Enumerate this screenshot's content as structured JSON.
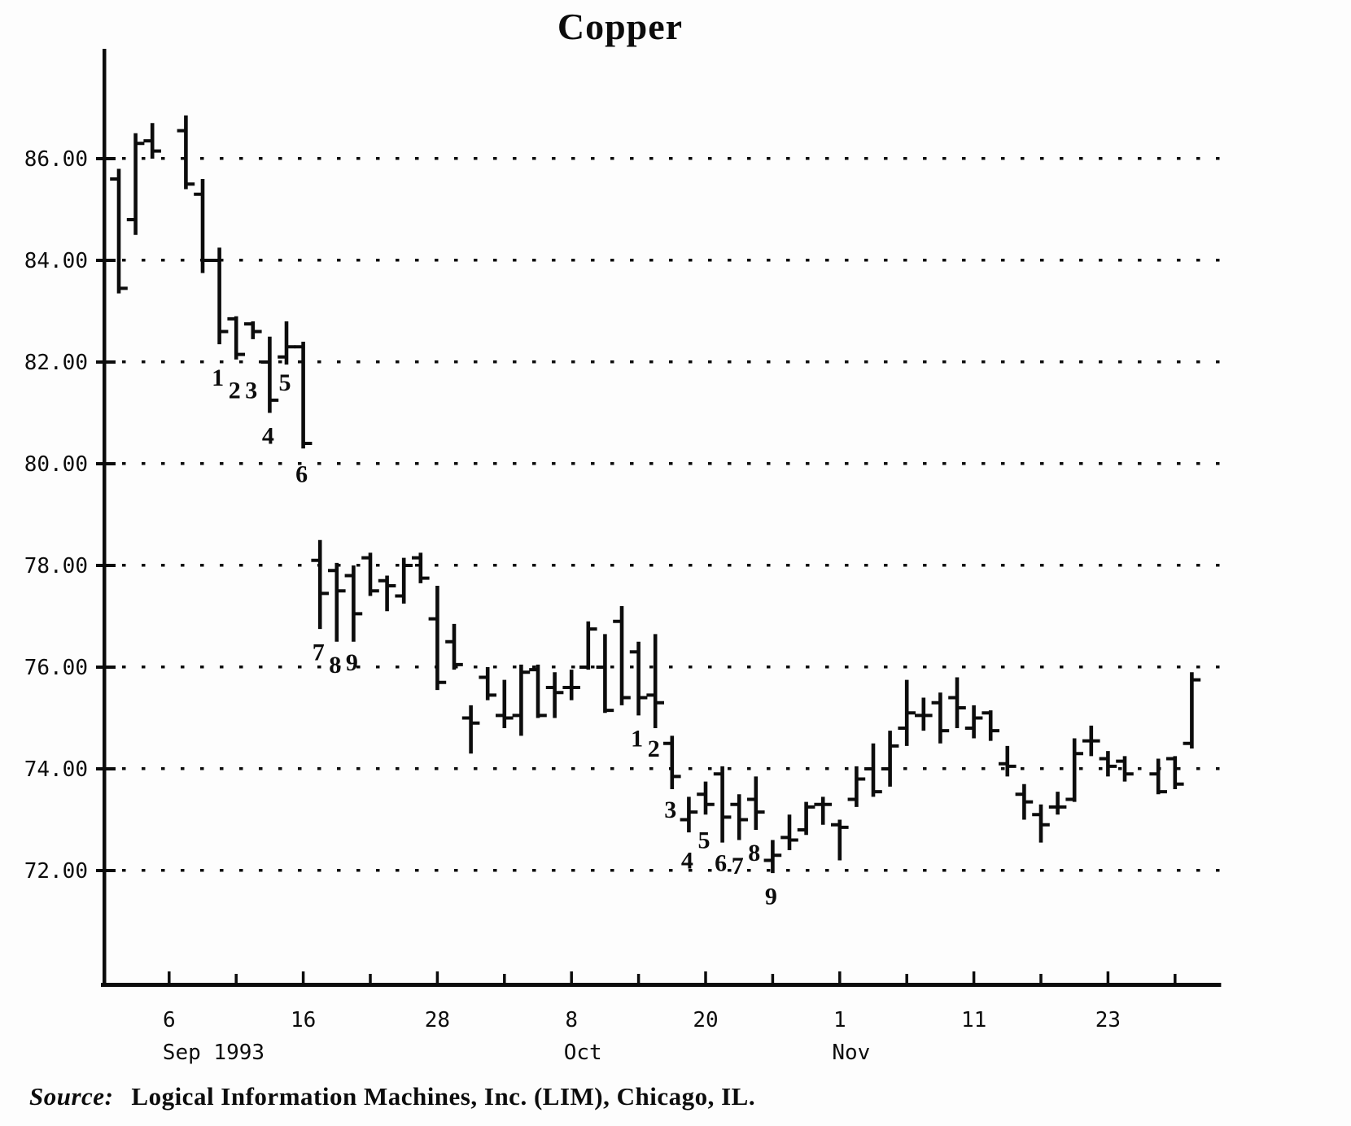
{
  "page": {
    "background": "#fdfdfd",
    "ink": "#0c0c0c"
  },
  "header": {
    "title": "Copper"
  },
  "footer": {
    "source_label": "Source:",
    "source_text": "Logical Information Machines, Inc. (LIM), Chicago, IL."
  },
  "chart_data": {
    "type": "bar",
    "variant": "daily-OHLC-price-bars",
    "title": "Copper",
    "xlabel": "",
    "ylabel": "",
    "grid": "dotted-horizontal",
    "legend": "none",
    "ylim": [
      70.6,
      88.2
    ],
    "y_axis": {
      "ticks": [
        {
          "value": 86,
          "label": "86.00"
        },
        {
          "value": 84,
          "label": "84.00"
        },
        {
          "value": 82,
          "label": "82.00"
        },
        {
          "value": 80,
          "label": "80.00"
        },
        {
          "value": 78,
          "label": "78.00"
        },
        {
          "value": 76,
          "label": "76.00"
        },
        {
          "value": 74,
          "label": "74.00"
        },
        {
          "value": 72,
          "label": "72.00"
        }
      ]
    },
    "x_axis": {
      "slots_total": 65,
      "major_ticks": [
        {
          "label": "6",
          "slot": 3
        },
        {
          "label": "16",
          "slot": 11
        },
        {
          "label": "28",
          "slot": 19
        },
        {
          "label": "8",
          "slot": 27
        },
        {
          "label": "20",
          "slot": 35
        },
        {
          "label": "1",
          "slot": 43
        },
        {
          "label": "11",
          "slot": 51
        },
        {
          "label": "23",
          "slot": 59
        }
      ],
      "minor_tick_slots": [
        7,
        15,
        23,
        31,
        39,
        47,
        55,
        63
      ],
      "month_labels": [
        {
          "label": "Sep 1993",
          "slot": 3,
          "align": "start"
        },
        {
          "label": "Oct",
          "slot": 27,
          "align": "middle"
        },
        {
          "label": "Nov",
          "slot": 43,
          "align": "middle"
        }
      ]
    },
    "annotations_note": "digits 1-9 printed below consecutive bars mark the two 9-day setup counts",
    "bars": [
      {
        "d": "Sep 1",
        "s": 0,
        "h": 85.8,
        "l": 83.35,
        "o": 85.6,
        "c": 83.45
      },
      {
        "d": "Sep 2",
        "s": 1,
        "h": 86.5,
        "l": 84.5,
        "o": 84.8,
        "c": 86.3
      },
      {
        "d": "Sep 3",
        "s": 2,
        "h": 86.7,
        "l": 86.0,
        "o": 86.35,
        "c": 86.15
      },
      {
        "d": "Sep 7",
        "s": 4,
        "h": 86.85,
        "l": 85.4,
        "o": 86.55,
        "c": 85.5
      },
      {
        "d": "Sep 8",
        "s": 5,
        "h": 85.6,
        "l": 83.75,
        "o": 85.3,
        "c": 84.0
      },
      {
        "d": "Sep 9",
        "s": 6,
        "h": 84.25,
        "l": 82.35,
        "o": 84.0,
        "c": 82.6,
        "n": "1",
        "ny": 81.7
      },
      {
        "d": "Sep 10",
        "s": 7,
        "h": 82.9,
        "l": 82.05,
        "o": 82.85,
        "c": 82.15,
        "n": "2",
        "ny": 81.45
      },
      {
        "d": "Sep 13",
        "s": 8,
        "h": 82.8,
        "l": 82.45,
        "o": 82.75,
        "c": 82.6,
        "n": "3",
        "ny": 81.45
      },
      {
        "d": "Sep 14",
        "s": 9,
        "h": 82.5,
        "l": 81.0,
        "o": 82.0,
        "c": 81.25,
        "n": "4",
        "ny": 80.55
      },
      {
        "d": "Sep 15",
        "s": 10,
        "h": 82.8,
        "l": 81.95,
        "o": 82.1,
        "c": 82.3,
        "n": "5",
        "ny": 81.6
      },
      {
        "d": "Sep 16",
        "s": 11,
        "h": 82.4,
        "l": 80.3,
        "o": 82.3,
        "c": 80.4,
        "n": "6",
        "ny": 79.8
      },
      {
        "d": "Sep 17",
        "s": 12,
        "h": 78.5,
        "l": 76.75,
        "o": 78.1,
        "c": 77.45,
        "n": "7",
        "ny": 76.3
      },
      {
        "d": "Sep 20",
        "s": 13,
        "h": 78.05,
        "l": 76.5,
        "o": 77.9,
        "c": 77.5,
        "n": "8",
        "ny": 76.05
      },
      {
        "d": "Sep 21",
        "s": 14,
        "h": 78.0,
        "l": 76.5,
        "o": 77.8,
        "c": 77.05,
        "n": "9",
        "ny": 76.1
      },
      {
        "d": "Sep 22",
        "s": 15,
        "h": 78.25,
        "l": 77.4,
        "o": 78.15,
        "c": 77.5
      },
      {
        "d": "Sep 23",
        "s": 16,
        "h": 77.8,
        "l": 77.1,
        "o": 77.7,
        "c": 77.6
      },
      {
        "d": "Sep 24",
        "s": 17,
        "h": 78.15,
        "l": 77.25,
        "o": 77.4,
        "c": 78.0
      },
      {
        "d": "Sep 27",
        "s": 18,
        "h": 78.25,
        "l": 77.65,
        "o": 78.15,
        "c": 77.75
      },
      {
        "d": "Sep 28",
        "s": 19,
        "h": 77.6,
        "l": 75.55,
        "o": 76.95,
        "c": 75.7
      },
      {
        "d": "Sep 29",
        "s": 20,
        "h": 76.85,
        "l": 75.95,
        "o": 76.5,
        "c": 76.05
      },
      {
        "d": "Sep 30",
        "s": 21,
        "h": 75.25,
        "l": 74.3,
        "o": 75.0,
        "c": 74.9
      },
      {
        "d": "Oct 1",
        "s": 22,
        "h": 76.0,
        "l": 75.35,
        "o": 75.8,
        "c": 75.45
      },
      {
        "d": "Oct 4",
        "s": 23,
        "h": 75.75,
        "l": 74.8,
        "o": 75.05,
        "c": 75.0
      },
      {
        "d": "Oct 5",
        "s": 24,
        "h": 76.05,
        "l": 74.65,
        "o": 75.05,
        "c": 75.9
      },
      {
        "d": "Oct 6",
        "s": 25,
        "h": 76.05,
        "l": 75.0,
        "o": 75.95,
        "c": 75.05
      },
      {
        "d": "Oct 7",
        "s": 26,
        "h": 75.9,
        "l": 75.0,
        "o": 75.6,
        "c": 75.5
      },
      {
        "d": "Oct 8",
        "s": 27,
        "h": 75.95,
        "l": 75.35,
        "o": 75.6,
        "c": 75.6
      },
      {
        "d": "Oct 11",
        "s": 28,
        "h": 76.9,
        "l": 75.95,
        "o": 76.0,
        "c": 76.75
      },
      {
        "d": "Oct 12",
        "s": 29,
        "h": 76.65,
        "l": 75.1,
        "o": 76.0,
        "c": 75.15
      },
      {
        "d": "Oct 13",
        "s": 30,
        "h": 77.2,
        "l": 75.25,
        "o": 76.9,
        "c": 75.4
      },
      {
        "d": "Oct 14",
        "s": 31,
        "h": 76.5,
        "l": 75.05,
        "o": 76.3,
        "c": 75.4,
        "n": "1",
        "ny": 74.6
      },
      {
        "d": "Oct 15",
        "s": 32,
        "h": 76.65,
        "l": 74.8,
        "o": 75.45,
        "c": 75.3,
        "n": "2",
        "ny": 74.4
      },
      {
        "d": "Oct 18",
        "s": 33,
        "h": 74.65,
        "l": 73.6,
        "o": 74.5,
        "c": 73.85,
        "n": "3",
        "ny": 73.2
      },
      {
        "d": "Oct 19",
        "s": 34,
        "h": 73.45,
        "l": 72.75,
        "o": 73.0,
        "c": 73.15,
        "n": "4",
        "ny": 72.2
      },
      {
        "d": "Oct 20",
        "s": 35,
        "h": 73.75,
        "l": 73.1,
        "o": 73.5,
        "c": 73.3,
        "n": "5",
        "ny": 72.6
      },
      {
        "d": "Oct 21",
        "s": 36,
        "h": 74.05,
        "l": 72.55,
        "o": 73.9,
        "c": 73.05,
        "n": "6",
        "ny": 72.15
      },
      {
        "d": "Oct 22",
        "s": 37,
        "h": 73.5,
        "l": 72.6,
        "o": 73.3,
        "c": 73.0,
        "n": "7",
        "ny": 72.1
      },
      {
        "d": "Oct 25",
        "s": 38,
        "h": 73.85,
        "l": 72.8,
        "o": 73.4,
        "c": 73.15,
        "n": "8",
        "ny": 72.35
      },
      {
        "d": "Oct 26",
        "s": 39,
        "h": 72.6,
        "l": 71.95,
        "o": 72.2,
        "c": 72.3,
        "n": "9",
        "ny": 71.5
      },
      {
        "d": "Oct 27",
        "s": 40,
        "h": 73.1,
        "l": 72.4,
        "o": 72.65,
        "c": 72.6
      },
      {
        "d": "Oct 28",
        "s": 41,
        "h": 73.35,
        "l": 72.7,
        "o": 72.8,
        "c": 73.25
      },
      {
        "d": "Oct 29",
        "s": 42,
        "h": 73.45,
        "l": 72.9,
        "o": 73.3,
        "c": 73.3
      },
      {
        "d": "Nov 1",
        "s": 43,
        "h": 73.0,
        "l": 72.2,
        "o": 72.9,
        "c": 72.85
      },
      {
        "d": "Nov 2",
        "s": 44,
        "h": 74.05,
        "l": 73.25,
        "o": 73.4,
        "c": 73.8
      },
      {
        "d": "Nov 3",
        "s": 45,
        "h": 74.5,
        "l": 73.45,
        "o": 74.0,
        "c": 73.55
      },
      {
        "d": "Nov 4",
        "s": 46,
        "h": 74.75,
        "l": 73.65,
        "o": 74.0,
        "c": 74.45
      },
      {
        "d": "Nov 5",
        "s": 47,
        "h": 75.75,
        "l": 74.45,
        "o": 74.8,
        "c": 75.1
      },
      {
        "d": "Nov 8",
        "s": 48,
        "h": 75.4,
        "l": 74.75,
        "o": 75.05,
        "c": 75.05
      },
      {
        "d": "Nov 9",
        "s": 49,
        "h": 75.5,
        "l": 74.5,
        "o": 75.3,
        "c": 74.75
      },
      {
        "d": "Nov 10",
        "s": 50,
        "h": 75.8,
        "l": 74.8,
        "o": 75.4,
        "c": 75.2
      },
      {
        "d": "Nov 11",
        "s": 51,
        "h": 75.25,
        "l": 74.6,
        "o": 74.8,
        "c": 75.0
      },
      {
        "d": "Nov 12",
        "s": 52,
        "h": 75.15,
        "l": 74.55,
        "o": 75.1,
        "c": 74.75
      },
      {
        "d": "Nov 15",
        "s": 53,
        "h": 74.45,
        "l": 73.85,
        "o": 74.1,
        "c": 74.05
      },
      {
        "d": "Nov 16",
        "s": 54,
        "h": 73.7,
        "l": 73.0,
        "o": 73.5,
        "c": 73.35
      },
      {
        "d": "Nov 17",
        "s": 55,
        "h": 73.3,
        "l": 72.55,
        "o": 73.1,
        "c": 72.9
      },
      {
        "d": "Nov 18",
        "s": 56,
        "h": 73.55,
        "l": 73.1,
        "o": 73.25,
        "c": 73.25
      },
      {
        "d": "Nov 19",
        "s": 57,
        "h": 74.6,
        "l": 73.35,
        "o": 73.4,
        "c": 74.3
      },
      {
        "d": "Nov 22",
        "s": 58,
        "h": 74.85,
        "l": 74.25,
        "o": 74.55,
        "c": 74.55
      },
      {
        "d": "Nov 23",
        "s": 59,
        "h": 74.35,
        "l": 73.85,
        "o": 74.2,
        "c": 74.05
      },
      {
        "d": "Nov 24",
        "s": 60,
        "h": 74.25,
        "l": 73.75,
        "o": 74.15,
        "c": 73.9
      },
      {
        "d": "Nov 26",
        "s": 62,
        "h": 74.2,
        "l": 73.5,
        "o": 73.9,
        "c": 73.55
      },
      {
        "d": "Nov 29",
        "s": 63,
        "h": 74.25,
        "l": 73.6,
        "o": 74.2,
        "c": 73.7
      },
      {
        "d": "Nov 30",
        "s": 64,
        "h": 75.9,
        "l": 74.4,
        "o": 74.5,
        "c": 75.75
      }
    ]
  }
}
